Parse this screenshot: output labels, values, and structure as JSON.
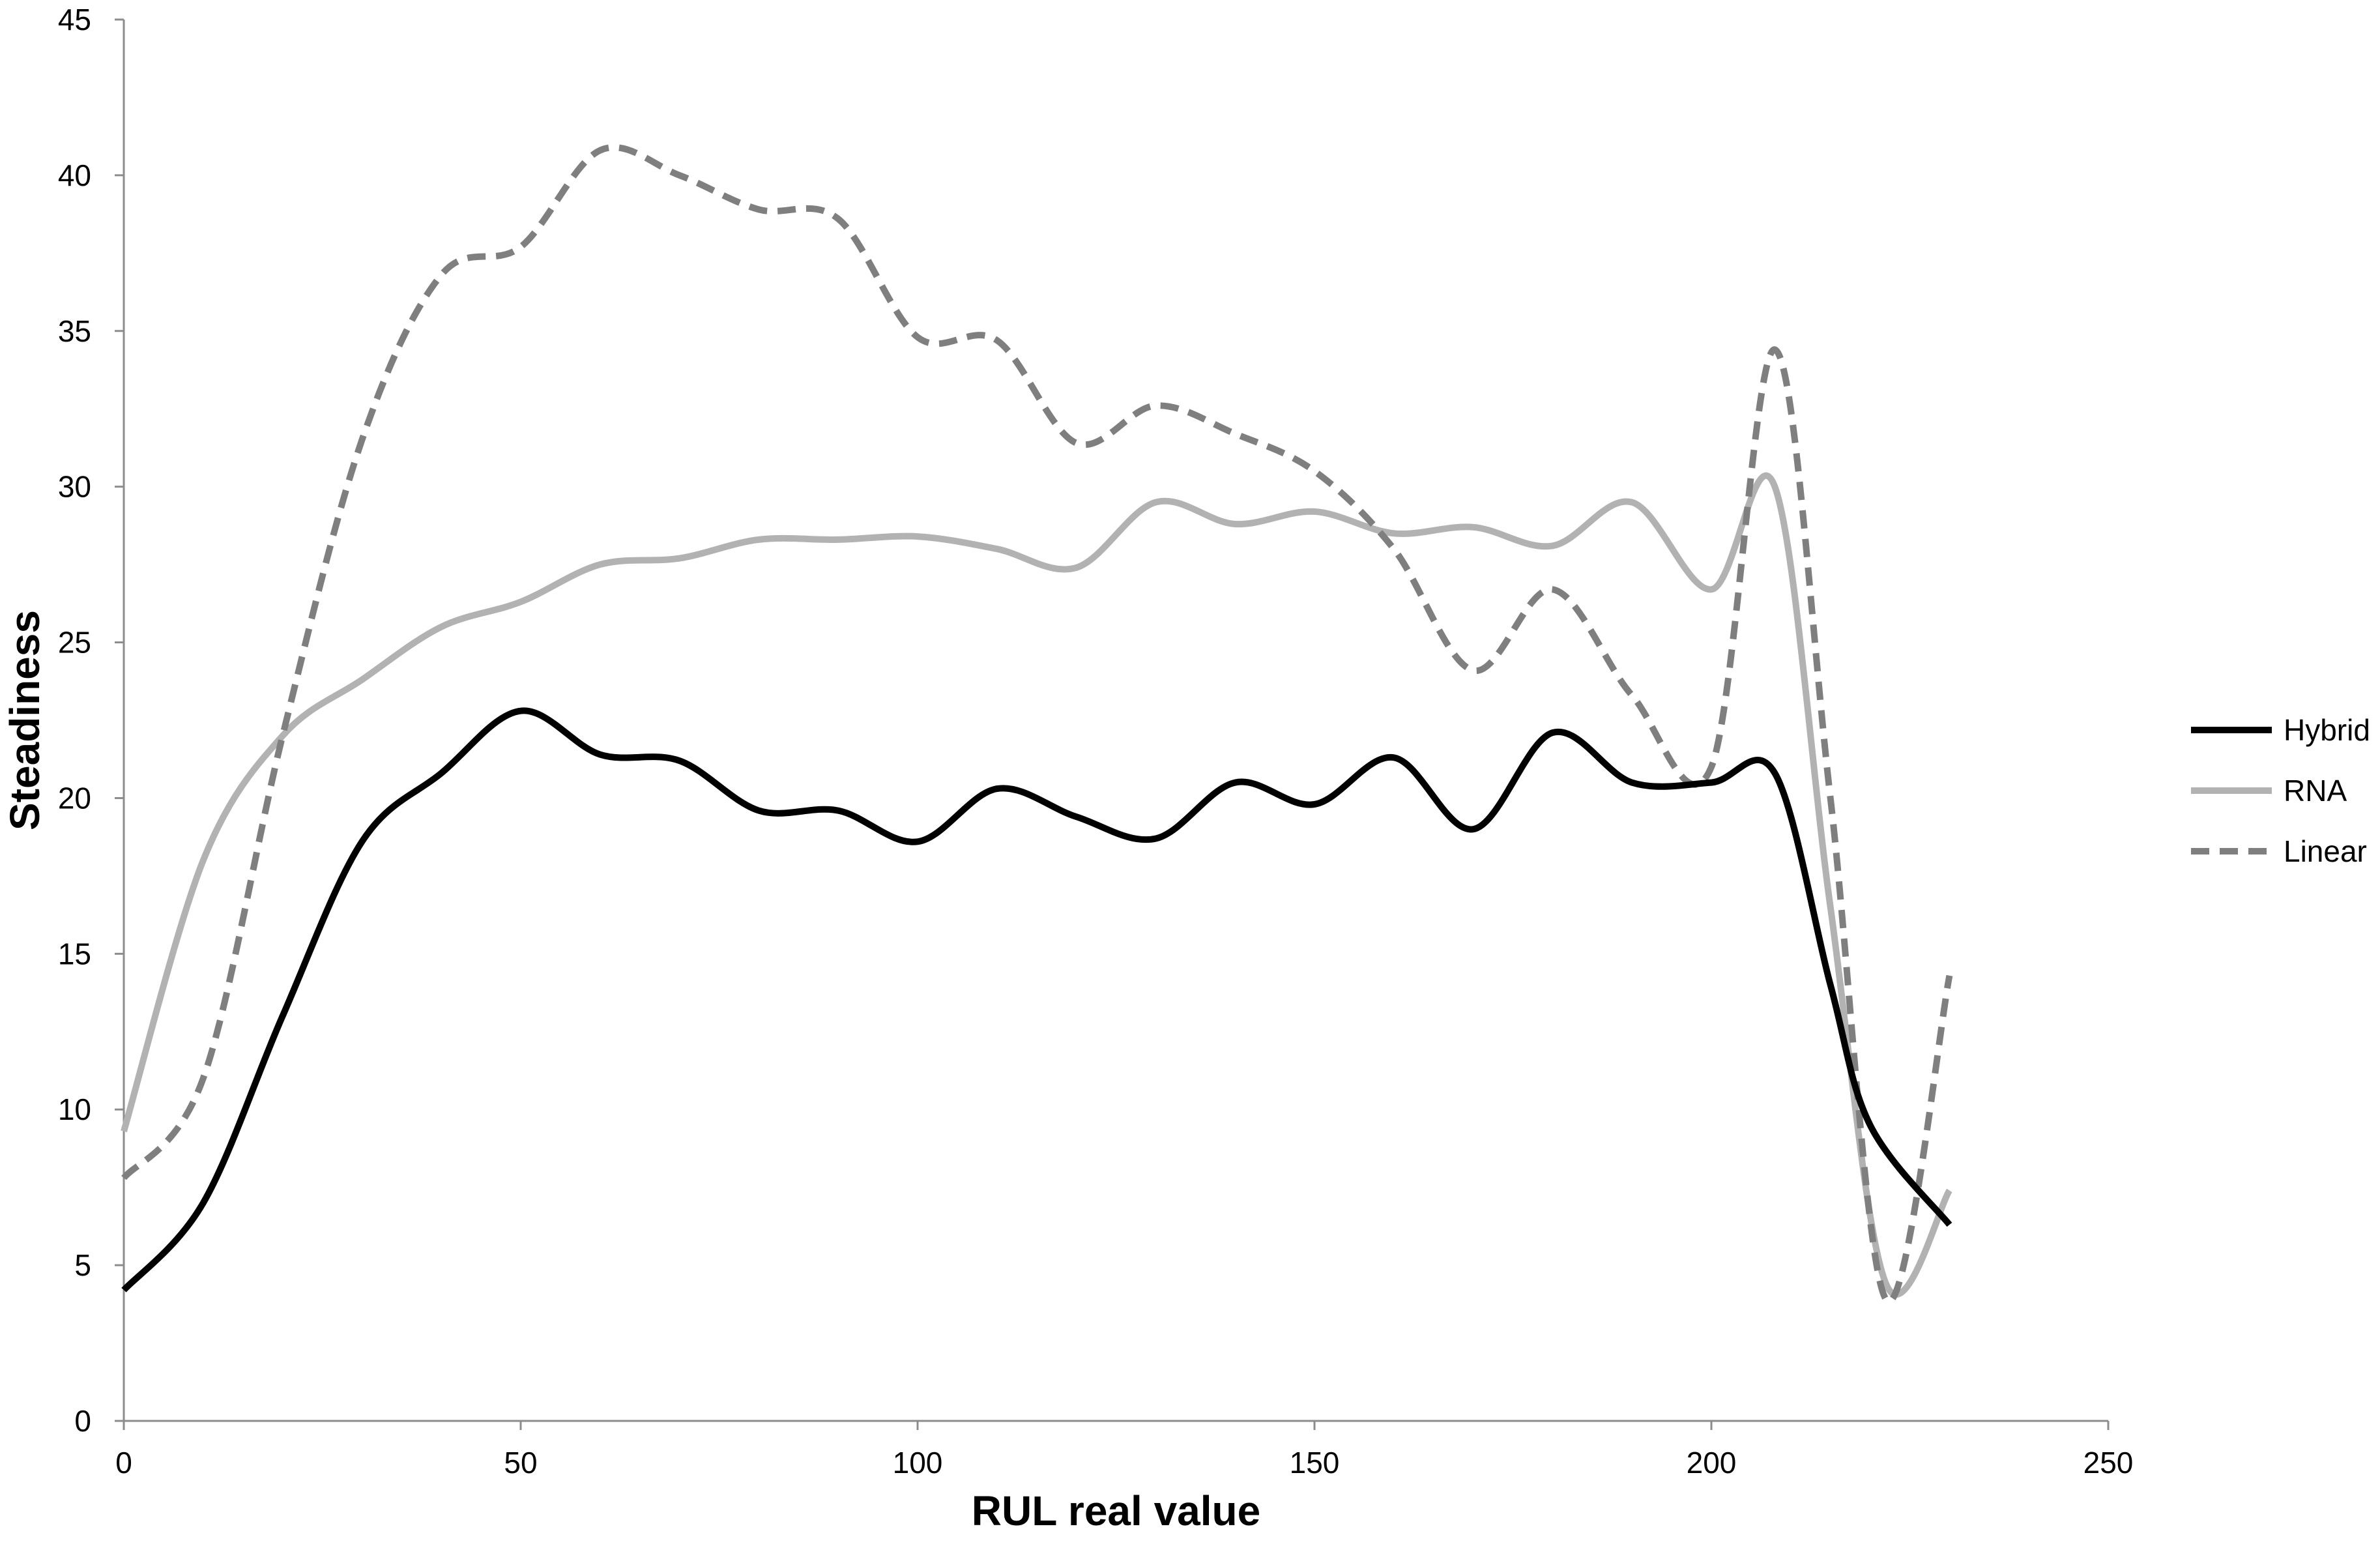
{
  "chart_data": {
    "type": "line",
    "title": "",
    "xlabel": "RUL real value",
    "ylabel": "Steadiness",
    "xlim": [
      0,
      250
    ],
    "ylim": [
      0,
      45
    ],
    "x_ticks": [
      0,
      50,
      100,
      150,
      200,
      250
    ],
    "y_ticks": [
      0,
      5,
      10,
      15,
      20,
      25,
      30,
      35,
      40,
      45
    ],
    "grid": false,
    "legend_position": "right",
    "series": [
      {
        "name": "Hybrid",
        "color": "#000000",
        "style": "solid",
        "points": [
          [
            0,
            4.2
          ],
          [
            10,
            7.0
          ],
          [
            20,
            13.0
          ],
          [
            30,
            18.6
          ],
          [
            40,
            20.8
          ],
          [
            50,
            22.8
          ],
          [
            60,
            21.4
          ],
          [
            70,
            21.2
          ],
          [
            80,
            19.6
          ],
          [
            90,
            19.6
          ],
          [
            100,
            18.6
          ],
          [
            110,
            20.3
          ],
          [
            120,
            19.4
          ],
          [
            130,
            18.7
          ],
          [
            140,
            20.5
          ],
          [
            150,
            19.8
          ],
          [
            160,
            21.3
          ],
          [
            170,
            19.0
          ],
          [
            180,
            22.1
          ],
          [
            190,
            20.5
          ],
          [
            200,
            20.5
          ],
          [
            208,
            20.8
          ],
          [
            215,
            14.0
          ],
          [
            220,
            9.5
          ],
          [
            230,
            6.3
          ]
        ]
      },
      {
        "name": "RNA",
        "color": "#b2b2b2",
        "style": "solid",
        "points": [
          [
            0,
            9.3
          ],
          [
            10,
            18.0
          ],
          [
            20,
            22.0
          ],
          [
            30,
            23.8
          ],
          [
            40,
            25.5
          ],
          [
            50,
            26.3
          ],
          [
            60,
            27.5
          ],
          [
            70,
            27.7
          ],
          [
            80,
            28.3
          ],
          [
            90,
            28.3
          ],
          [
            100,
            28.4
          ],
          [
            110,
            28.0
          ],
          [
            120,
            27.4
          ],
          [
            130,
            29.5
          ],
          [
            140,
            28.8
          ],
          [
            150,
            29.2
          ],
          [
            160,
            28.5
          ],
          [
            170,
            28.7
          ],
          [
            180,
            28.1
          ],
          [
            190,
            29.5
          ],
          [
            200,
            26.7
          ],
          [
            208,
            30.0
          ],
          [
            215,
            16.5
          ],
          [
            222,
            4.4
          ],
          [
            230,
            7.4
          ]
        ]
      },
      {
        "name": "Linear",
        "color": "#7f7f7f",
        "style": "dashed",
        "points": [
          [
            0,
            7.8
          ],
          [
            10,
            11.0
          ],
          [
            20,
            22.0
          ],
          [
            30,
            31.5
          ],
          [
            40,
            36.8
          ],
          [
            50,
            37.7
          ],
          [
            60,
            40.8
          ],
          [
            70,
            40.0
          ],
          [
            80,
            38.9
          ],
          [
            90,
            38.6
          ],
          [
            100,
            34.8
          ],
          [
            110,
            34.7
          ],
          [
            120,
            31.4
          ],
          [
            130,
            32.6
          ],
          [
            140,
            31.7
          ],
          [
            150,
            30.5
          ],
          [
            160,
            28.0
          ],
          [
            170,
            24.1
          ],
          [
            180,
            26.7
          ],
          [
            190,
            23.3
          ],
          [
            200,
            21.0
          ],
          [
            208,
            34.4
          ],
          [
            215,
            20.0
          ],
          [
            222,
            3.9
          ],
          [
            230,
            14.3
          ]
        ]
      }
    ]
  }
}
